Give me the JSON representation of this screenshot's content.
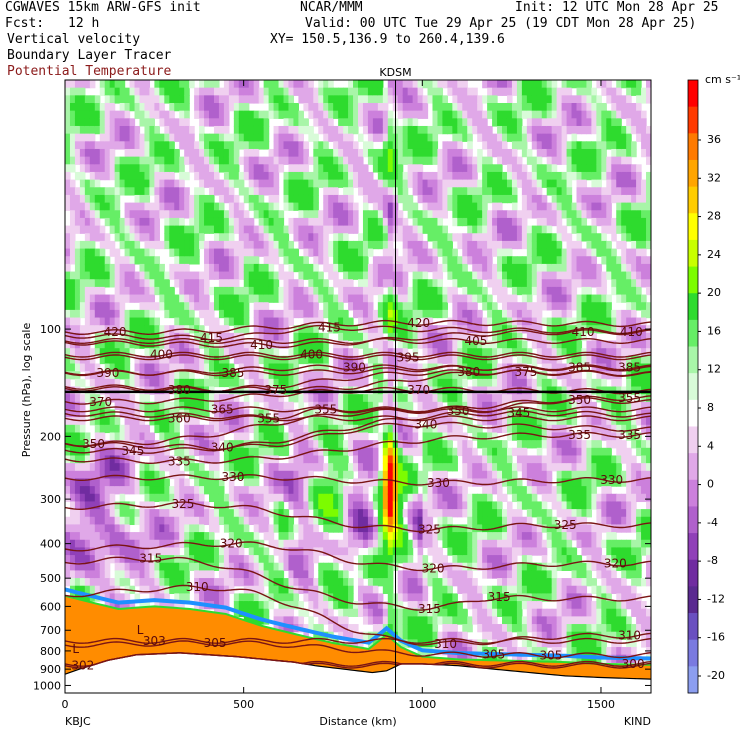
{
  "header": {
    "model": "CGWAVES 15km ARW-GFS init",
    "org": "NCAR/MMM",
    "init": "Init: 12 UTC Mon 28 Apr 25",
    "fcst_label": "Fcst:",
    "fcst_value": "12 h",
    "valid": "Valid: 00 UTC Tue 29 Apr 25 (19 CDT Mon 28 Apr 25)",
    "field1": "Vertical velocity",
    "field2": "Boundary Layer Tracer",
    "field3": "Potential Temperature",
    "xy": "XY= 150.5,136.9 to 260.4,139.6",
    "field3_color": "#8b1a1a"
  },
  "chart_data": {
    "type": "heatmap",
    "title": "",
    "xlabel": "Distance (km)",
    "ylabel": "Pressure (hPa), log scale",
    "x_ticks": [
      0,
      500,
      1000,
      1500
    ],
    "xlim": [
      0,
      1640
    ],
    "y_ticks": [
      100,
      200,
      300,
      400,
      500,
      600,
      700,
      800,
      900,
      1000
    ],
    "ylim": [
      1050,
      20
    ],
    "y_scale": "log",
    "left_station": "KBJC",
    "right_station": "KIND",
    "marker_station": "KDSM",
    "marker_x": 925,
    "colorbar": {
      "unit": "cm s⁻¹",
      "ticks": [
        36,
        32,
        28,
        24,
        20,
        16,
        12,
        8,
        4,
        0,
        -4,
        -8,
        -12,
        -16,
        -20
      ],
      "colors": [
        "#ff0000",
        "#ff3a00",
        "#ff7a00",
        "#ffa500",
        "#ffcc00",
        "#ffff00",
        "#c8ff00",
        "#7cfc00",
        "#2edb2e",
        "#66ee66",
        "#a8f5a8",
        "#d8fbd8",
        "#ffffff",
        "#f0d0f0",
        "#e0a8e8",
        "#cc80dc",
        "#b060cc",
        "#9040b8",
        "#702ca0",
        "#5a2a90",
        "#6a50c0",
        "#7a7ae0",
        "#8c9ef0"
      ]
    },
    "theta_contours": [
      {
        "value": "300",
        "label_x": 1590,
        "label_p": 870
      },
      {
        "value": "302",
        "label_x": 50,
        "label_p": 880
      },
      {
        "value": "303",
        "label_x": 250,
        "label_p": 750
      },
      {
        "value": "305",
        "label_x": 420,
        "label_p": 760
      },
      {
        "value": "305",
        "label_x": 1200,
        "label_p": 820
      },
      {
        "value": "305",
        "label_x": 1360,
        "label_p": 825
      },
      {
        "value": "310",
        "label_x": 1065,
        "label_p": 765
      },
      {
        "value": "310",
        "label_x": 1580,
        "label_p": 725
      },
      {
        "value": "310",
        "label_x": 370,
        "label_p": 530
      },
      {
        "value": "315",
        "label_x": 1020,
        "label_p": 610
      },
      {
        "value": "315",
        "label_x": 1215,
        "label_p": 565
      },
      {
        "value": "315",
        "label_x": 240,
        "label_p": 440
      },
      {
        "value": "320",
        "label_x": 1030,
        "label_p": 470
      },
      {
        "value": "320",
        "label_x": 1540,
        "label_p": 455
      },
      {
        "value": "320",
        "label_x": 465,
        "label_p": 400
      },
      {
        "value": "325",
        "label_x": 1020,
        "label_p": 365
      },
      {
        "value": "325",
        "label_x": 1400,
        "label_p": 355
      },
      {
        "value": "325",
        "label_x": 330,
        "label_p": 310
      },
      {
        "value": "330",
        "label_x": 1045,
        "label_p": 270
      },
      {
        "value": "330",
        "label_x": 1530,
        "label_p": 265
      },
      {
        "value": "330",
        "label_x": 470,
        "label_p": 260
      },
      {
        "value": "335",
        "label_x": 320,
        "label_p": 235
      },
      {
        "value": "335",
        "label_x": 1440,
        "label_p": 198
      },
      {
        "value": "335",
        "label_x": 1580,
        "label_p": 198
      },
      {
        "value": "340",
        "label_x": 440,
        "label_p": 215
      },
      {
        "value": "340",
        "label_x": 1010,
        "label_p": 185
      },
      {
        "value": "345",
        "label_x": 190,
        "label_p": 220
      },
      {
        "value": "345",
        "label_x": 1270,
        "label_p": 172
      },
      {
        "value": "350",
        "label_x": 80,
        "label_p": 210
      },
      {
        "value": "350",
        "label_x": 1100,
        "label_p": 170
      },
      {
        "value": "350",
        "label_x": 1440,
        "label_p": 158
      },
      {
        "value": "355",
        "label_x": 570,
        "label_p": 178
      },
      {
        "value": "355",
        "label_x": 730,
        "label_p": 168
      },
      {
        "value": "355",
        "label_x": 1580,
        "label_p": 156
      },
      {
        "value": "360",
        "label_x": 320,
        "label_p": 178
      },
      {
        "value": "365",
        "label_x": 440,
        "label_p": 168
      },
      {
        "value": "370",
        "label_x": 100,
        "label_p": 160
      },
      {
        "value": "370",
        "label_x": 990,
        "label_p": 148
      },
      {
        "value": "375",
        "label_x": 590,
        "label_p": 148
      },
      {
        "value": "375",
        "label_x": 1290,
        "label_p": 132
      },
      {
        "value": "380",
        "label_x": 320,
        "label_p": 148
      },
      {
        "value": "380",
        "label_x": 1130,
        "label_p": 132
      },
      {
        "value": "385",
        "label_x": 470,
        "label_p": 133
      },
      {
        "value": "385",
        "label_x": 1440,
        "label_p": 128
      },
      {
        "value": "385",
        "label_x": 1580,
        "label_p": 128
      },
      {
        "value": "390",
        "label_x": 120,
        "label_p": 133
      },
      {
        "value": "390",
        "label_x": 810,
        "label_p": 128
      },
      {
        "value": "395",
        "label_x": 960,
        "label_p": 120
      },
      {
        "value": "400",
        "label_x": 270,
        "label_p": 118
      },
      {
        "value": "400",
        "label_x": 690,
        "label_p": 118
      },
      {
        "value": "405",
        "label_x": 1150,
        "label_p": 108
      },
      {
        "value": "410",
        "label_x": 550,
        "label_p": 111
      },
      {
        "value": "410",
        "label_x": 1450,
        "label_p": 102
      },
      {
        "value": "410",
        "label_x": 1585,
        "label_p": 102
      },
      {
        "value": "415",
        "label_x": 410,
        "label_p": 106
      },
      {
        "value": "415",
        "label_x": 740,
        "label_p": 99
      },
      {
        "value": "420",
        "label_x": 140,
        "label_p": 102
      },
      {
        "value": "420",
        "label_x": 990,
        "label_p": 96
      }
    ],
    "annotations": [
      {
        "text": "L",
        "x": 210,
        "p": 700
      },
      {
        "text": "L",
        "x": 30,
        "p": 790
      }
    ]
  }
}
